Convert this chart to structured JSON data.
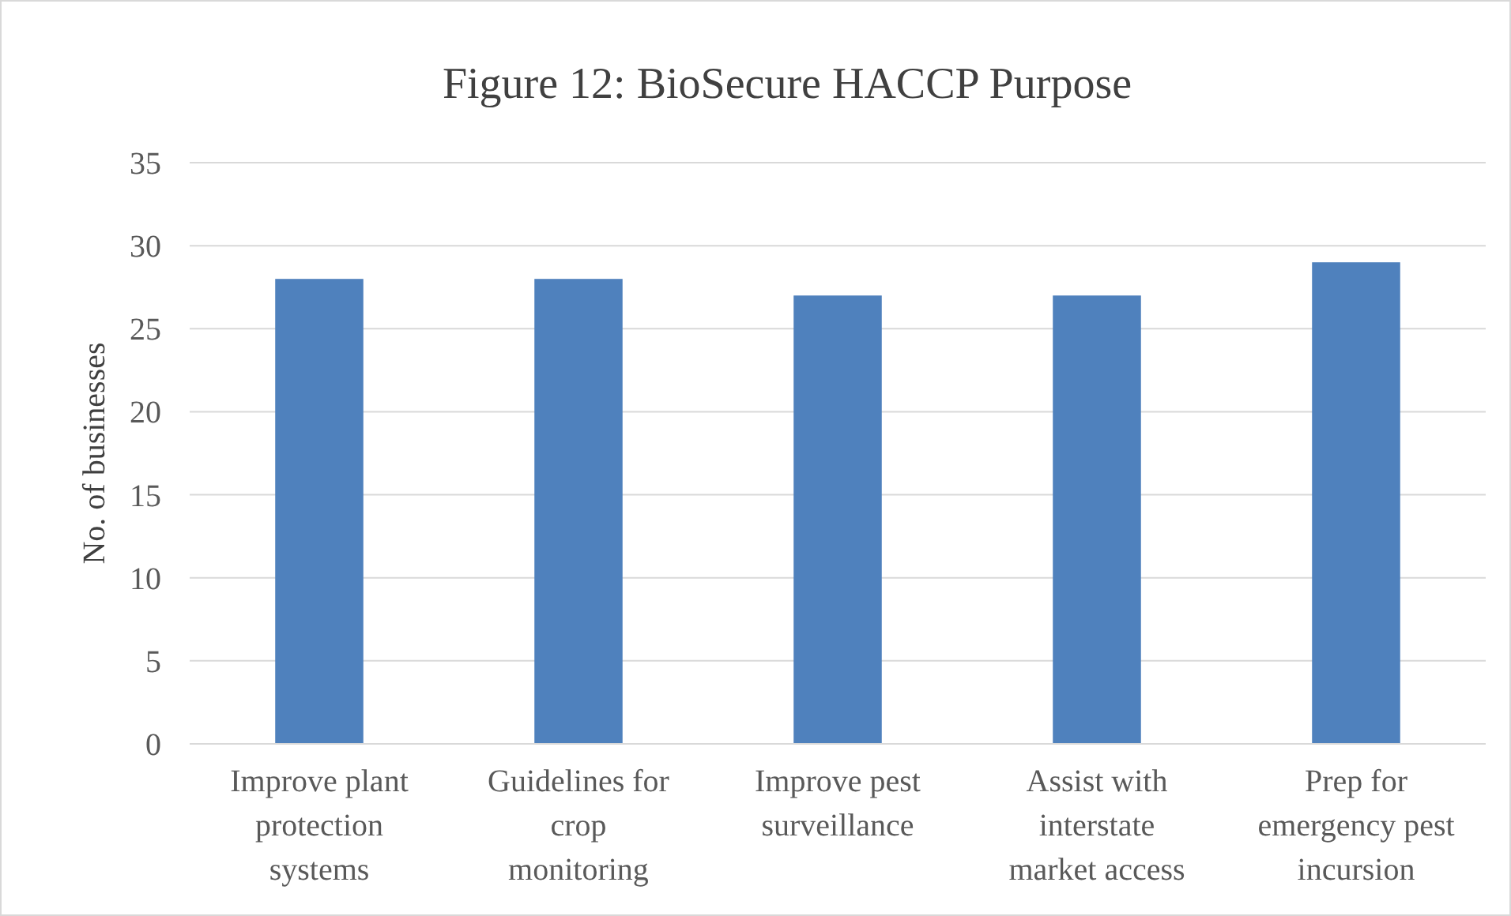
{
  "chart_data": {
    "type": "bar",
    "title": "Figure 12: BioSecure HACCP Purpose",
    "ylabel": "No. of businesses",
    "categories": [
      "Improve plant protection systems",
      "Guidelines for crop monitoring",
      "Improve pest surveillance",
      "Assist with interstate market access",
      "Prep for emergency pest incursion"
    ],
    "values": [
      28,
      28,
      27,
      27,
      29
    ],
    "color": "#4f81bd",
    "ylim": [
      0,
      35
    ],
    "yticks": [
      0,
      5,
      10,
      15,
      20,
      25,
      30,
      35
    ],
    "grid": "y"
  }
}
